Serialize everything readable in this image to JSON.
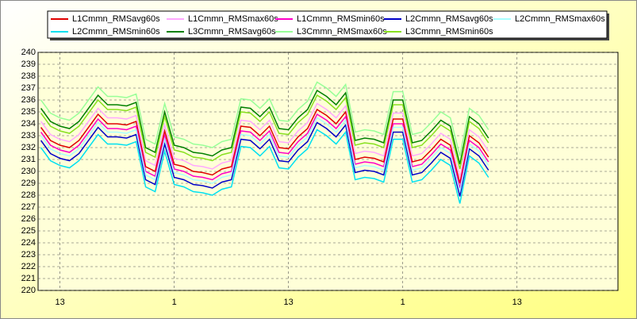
{
  "chart_data": {
    "type": "line",
    "x": [
      11,
      12,
      13,
      14,
      15,
      16,
      17,
      18,
      19,
      20,
      21,
      22,
      23,
      24,
      25,
      26,
      27,
      28,
      29,
      30,
      31,
      32,
      33,
      34,
      35,
      36,
      37,
      38,
      39,
      40,
      41,
      42,
      43,
      44,
      45,
      46,
      47,
      48,
      49,
      50,
      51,
      52,
      53,
      54,
      55,
      56,
      57,
      58
    ],
    "xlim": [
      10.7,
      71.6
    ],
    "xticks": [
      {
        "value": 13,
        "label": "13"
      },
      {
        "value": 25,
        "label": "1"
      },
      {
        "value": 37,
        "label": "13"
      },
      {
        "value": 49,
        "label": "1"
      },
      {
        "value": 61,
        "label": "13"
      }
    ],
    "ylim": [
      220,
      240
    ],
    "yticks": [
      220,
      221,
      222,
      223,
      224,
      225,
      226,
      227,
      228,
      229,
      230,
      231,
      232,
      233,
      234,
      235,
      236,
      237,
      238,
      239,
      240
    ],
    "grid": true,
    "legend": "top",
    "series": [
      {
        "name": "L1Cmmn_RMSavg60s",
        "color": "#e00000",
        "values": [
          233.7,
          232.6,
          232.2,
          232,
          232.6,
          233.7,
          234.8,
          234,
          234,
          233.9,
          234.2,
          230.4,
          230,
          233.4,
          230.6,
          230.4,
          230,
          229.9,
          229.7,
          230.2,
          230.4,
          233.8,
          233.7,
          233,
          233.8,
          232,
          231.9,
          232.9,
          233.6,
          235.2,
          234.7,
          234,
          235,
          231,
          231.2,
          231.1,
          230.8,
          234.4,
          234.4,
          230.8,
          231,
          231.8,
          232.7,
          232.2,
          229,
          233,
          232.4,
          231.2
        ]
      },
      {
        "name": "L1Cmmn_RMSmax60s",
        "color": "#ffa8ff",
        "values": [
          234.2,
          233.1,
          232.7,
          232.5,
          233.1,
          234.2,
          235.3,
          234.5,
          234.5,
          234.4,
          234.7,
          230.9,
          230.5,
          233.9,
          231.1,
          230.9,
          230.5,
          230.4,
          230.2,
          230.7,
          230.9,
          234.3,
          234.2,
          233.5,
          234.3,
          232.5,
          232.4,
          233.4,
          234.1,
          235.7,
          235.2,
          234.5,
          235.5,
          231.5,
          231.7,
          231.6,
          231.3,
          234.9,
          234.9,
          231.3,
          231.5,
          232.3,
          233.2,
          232.7,
          229.5,
          233.5,
          232.9,
          231.7
        ]
      },
      {
        "name": "L1Cmmn_RMSmin60s",
        "color": "#ff00c8",
        "values": [
          233.3,
          232.2,
          231.8,
          231.6,
          232.2,
          233.3,
          234.4,
          233.6,
          233.6,
          233.5,
          233.8,
          230,
          229.6,
          233,
          230.2,
          230,
          229.6,
          229.5,
          229.3,
          229.8,
          230,
          233.4,
          233.3,
          232.6,
          233.4,
          231.6,
          231.5,
          232.5,
          233.2,
          234.8,
          234.3,
          233.6,
          234.6,
          230.6,
          230.8,
          230.7,
          230.4,
          234,
          234,
          230.4,
          230.6,
          231.4,
          232.3,
          231.8,
          228.6,
          232.6,
          232,
          230.8
        ]
      },
      {
        "name": "L2Cmmn_RMSavg60s",
        "color": "#0000c8",
        "values": [
          232.6,
          231.5,
          231.1,
          230.9,
          231.5,
          232.6,
          233.7,
          232.9,
          232.9,
          232.8,
          233.1,
          229.3,
          228.9,
          232.3,
          229.5,
          229.3,
          228.9,
          228.8,
          228.6,
          229.1,
          229.3,
          232.7,
          232.6,
          231.9,
          232.7,
          230.9,
          230.8,
          231.8,
          232.5,
          234.1,
          233.6,
          232.9,
          233.9,
          229.9,
          230.1,
          230,
          229.7,
          233.3,
          233.3,
          229.7,
          229.9,
          230.7,
          231.6,
          231.1,
          227.9,
          231.9,
          231.3,
          230.1
        ]
      },
      {
        "name": "L2Cmmn_RMSmax60s",
        "color": "#a8ffff",
        "values": [
          233,
          231.9,
          231.5,
          231.3,
          231.9,
          233,
          234.1,
          233.3,
          233.3,
          233.2,
          233.5,
          229.7,
          229.3,
          232.7,
          229.9,
          229.7,
          229.3,
          229.2,
          229,
          229.5,
          229.7,
          233.1,
          233,
          232.3,
          233.1,
          231.3,
          231.2,
          232.2,
          232.9,
          234.5,
          234,
          233.3,
          234.3,
          230.3,
          230.5,
          230.4,
          230.1,
          233.7,
          233.7,
          230.1,
          230.3,
          231.1,
          232,
          231.5,
          228.3,
          232.3,
          231.7,
          230.5
        ]
      },
      {
        "name": "L2Cmmn_RMSmin60s",
        "color": "#00e0f0",
        "values": [
          232,
          230.9,
          230.5,
          230.3,
          230.9,
          232,
          233.1,
          232.3,
          232.3,
          232.2,
          232.5,
          228.7,
          228.3,
          231.7,
          228.9,
          228.7,
          228.3,
          228.2,
          228,
          228.5,
          228.7,
          232.1,
          232,
          231.3,
          232.1,
          230.3,
          230.2,
          231.2,
          231.9,
          233.5,
          233,
          232.3,
          233.3,
          229.3,
          229.5,
          229.4,
          229.1,
          232.7,
          232.7,
          229.1,
          229.3,
          230.1,
          231,
          230.5,
          227.3,
          231.3,
          230.7,
          229.5
        ]
      },
      {
        "name": "L3Cmmn_RMSavg60s",
        "color": "#008000",
        "values": [
          235.3,
          234.2,
          233.8,
          233.6,
          234.2,
          235.3,
          236.4,
          235.6,
          235.6,
          235.5,
          235.8,
          232,
          231.6,
          235,
          232.2,
          232,
          231.6,
          231.5,
          231.3,
          231.8,
          232,
          235.4,
          235.3,
          234.6,
          235.4,
          233.6,
          233.5,
          234.5,
          235.2,
          236.8,
          236.3,
          235.6,
          236.6,
          232.6,
          232.8,
          232.7,
          232.4,
          236,
          236,
          232.4,
          232.6,
          233.4,
          234.3,
          233.8,
          230.6,
          234.6,
          234,
          232.8
        ]
      },
      {
        "name": "L3Cmmn_RMSmax60s",
        "color": "#98ff98",
        "values": [
          236,
          234.9,
          234.5,
          234.3,
          234.9,
          236,
          237.1,
          236.3,
          236.3,
          236.2,
          236.5,
          232.7,
          232.3,
          235.7,
          232.9,
          232.7,
          232.3,
          232.2,
          232,
          232.5,
          232.7,
          236.1,
          236,
          235.3,
          236.1,
          234.3,
          234.2,
          235.2,
          235.9,
          237.5,
          237,
          236.3,
          237.3,
          233.3,
          233.5,
          233.4,
          233.1,
          236.7,
          236.7,
          233.1,
          233.3,
          234.1,
          235,
          234.5,
          231.3,
          235.3,
          234.7,
          233.5
        ]
      },
      {
        "name": "L3Cmmn_RMSmin60s",
        "color": "#88e020",
        "values": [
          234.9,
          233.8,
          233.4,
          233.2,
          233.8,
          234.9,
          236,
          235.2,
          235.2,
          235.1,
          235.4,
          231.6,
          231.2,
          234.6,
          231.8,
          231.6,
          231.2,
          231.1,
          230.9,
          231.4,
          231.6,
          235,
          234.9,
          234.2,
          235,
          233.2,
          233.1,
          234.1,
          234.8,
          236.4,
          235.9,
          235.2,
          236.2,
          232.2,
          232.4,
          232.3,
          232,
          235.6,
          235.6,
          232,
          232.2,
          233,
          233.9,
          233.4,
          230.2,
          234.2,
          233.6,
          232.4
        ]
      }
    ]
  }
}
